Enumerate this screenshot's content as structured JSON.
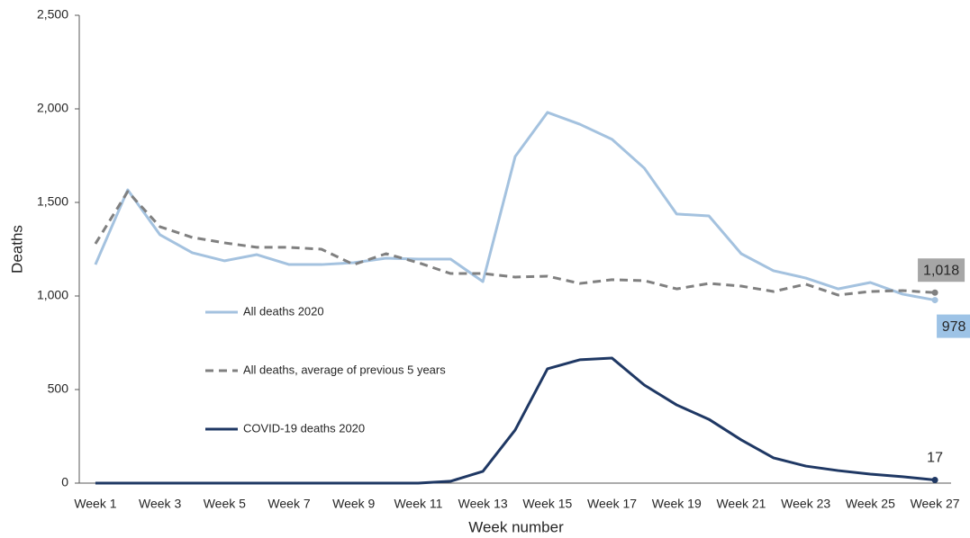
{
  "chart_data": {
    "type": "line",
    "x_label": "Week number",
    "y_label": "Deaths",
    "categories": [
      "Week 1",
      null,
      "Week 3",
      null,
      "Week 5",
      null,
      "Week 7",
      null,
      "Week 9",
      null,
      "Week 11",
      null,
      "Week 13",
      null,
      "Week 15",
      null,
      "Week 17",
      null,
      "Week 19",
      null,
      "Week 21",
      null,
      "Week 23",
      null,
      "Week 25",
      null,
      "Week 27"
    ],
    "ylim": [
      0,
      2500
    ],
    "yticks": [
      0,
      500,
      {
        "value": 1000,
        "label": "1,000"
      },
      {
        "value": 1500,
        "label": "1,500"
      },
      {
        "value": 2000,
        "label": "2,000"
      },
      {
        "value": 2500,
        "label": "2,500"
      }
    ],
    "legend": "center-left",
    "series": [
      {
        "name": "All deaths 2020",
        "color": "#a4c2df",
        "label_box": "#9dc3e6",
        "dash": false,
        "values": [
          1168,
          1567,
          1327,
          1231,
          1188,
          1221,
          1168,
          1168,
          1178,
          1202,
          1197,
          1197,
          1077,
          1745,
          1981,
          1918,
          1837,
          1683,
          1438,
          1428,
          1226,
          1135,
          1096,
          1038,
          1072,
          1010,
          978
        ]
      },
      {
        "name": "All deaths, average of previous 5 years",
        "color": "#808080",
        "label_box": "#a6a6a6",
        "dash": true,
        "values": [
          1279,
          1558,
          1370,
          1313,
          1284,
          1260,
          1260,
          1250,
          1168,
          1226,
          1178,
          1120,
          1120,
          1101,
          1106,
          1067,
          1087,
          1082,
          1038,
          1067,
          1053,
          1024,
          1063,
          1005,
          1024,
          1029,
          1018
        ],
        "value_labels": [
          null,
          null,
          null,
          null,
          null,
          null,
          null,
          null,
          null,
          null,
          null,
          null,
          null,
          null,
          null,
          null,
          null,
          null,
          null,
          null,
          null,
          null,
          null,
          null,
          null,
          null,
          "1,018"
        ]
      },
      {
        "name": "COVID-19 deaths 2020",
        "color": "#1f3864",
        "dash": false,
        "values": [
          0,
          0,
          0,
          0,
          0,
          0,
          0,
          0,
          0,
          0,
          0,
          10,
          63,
          284,
          611,
          659,
          668,
          524,
          418,
          341,
          231,
          135,
          91,
          67,
          48,
          34,
          17
        ]
      }
    ]
  }
}
